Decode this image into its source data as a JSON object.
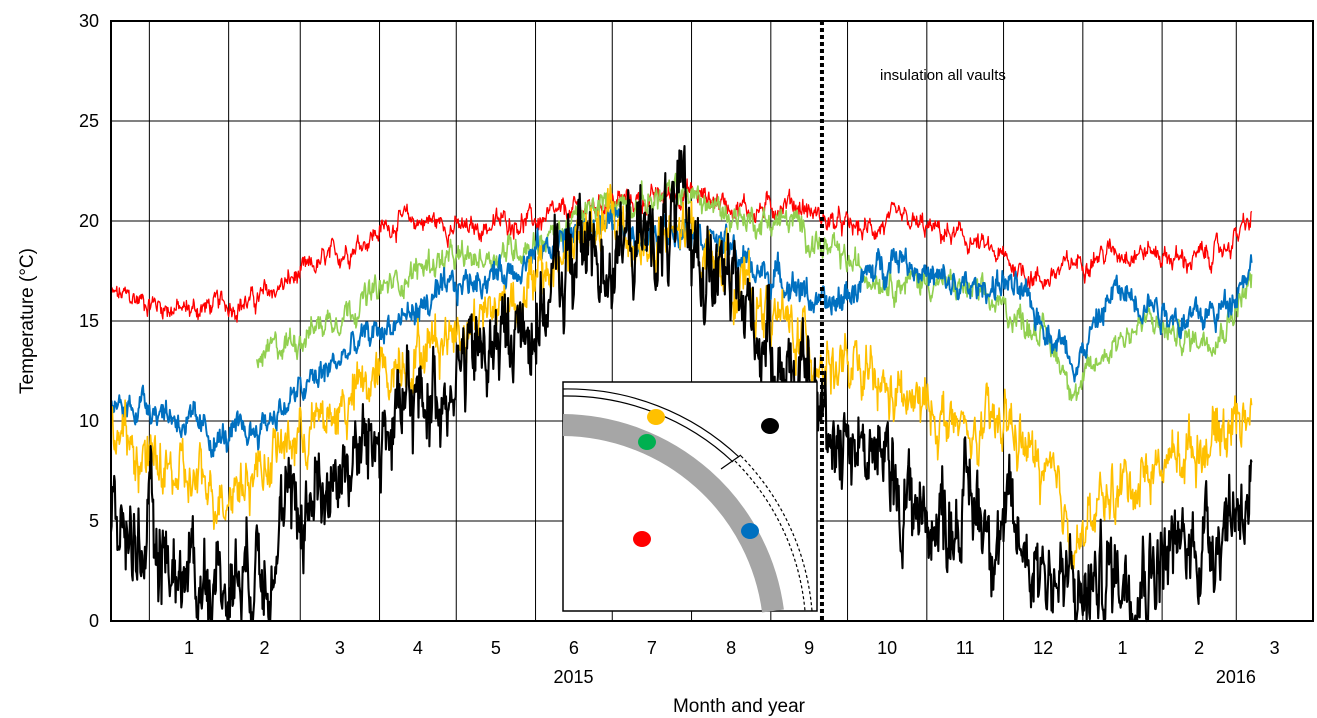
{
  "chart_data": {
    "type": "line",
    "ylabel": "Temperature (°C)",
    "xlabel": "Month and year",
    "ylim": [
      0,
      30
    ],
    "yticks": [
      0,
      5,
      10,
      15,
      20,
      25,
      30
    ],
    "xlim": [
      "2014-12-17",
      "2016-03-31"
    ],
    "month_ticks": [
      "1",
      "2",
      "3",
      "4",
      "5",
      "6",
      "7",
      "8",
      "9",
      "10",
      "11",
      "12",
      "1",
      "2",
      "3"
    ],
    "month_starts": [
      "2015-01-01",
      "2015-02-01",
      "2015-03-01",
      "2015-04-01",
      "2015-05-01",
      "2015-06-01",
      "2015-07-01",
      "2015-08-01",
      "2015-09-01",
      "2015-10-01",
      "2015-11-01",
      "2015-12-01",
      "2016-01-01",
      "2016-02-01",
      "2016-03-01"
    ],
    "year_labels": [
      {
        "text": "2015",
        "date": "2015-06-01"
      },
      {
        "text": "2016",
        "date": "2016-02-15"
      }
    ],
    "grid": true,
    "legend": "none",
    "annotation": {
      "text": "insulation all vaults",
      "date": "2015-09-21"
    },
    "series": [
      {
        "color": "#ff0000",
        "smooth": [
          [
            0,
            16.3
          ],
          [
            14,
            16.0
          ],
          [
            28,
            15.5
          ],
          [
            42,
            15.8
          ],
          [
            56,
            16.0
          ],
          [
            70,
            17.0
          ],
          [
            84,
            18.0
          ],
          [
            98,
            19.0
          ],
          [
            112,
            20.0
          ],
          [
            126,
            20.0
          ],
          [
            140,
            19.5
          ],
          [
            154,
            20.0
          ],
          [
            168,
            20.0
          ],
          [
            182,
            20.5
          ],
          [
            196,
            21.0
          ],
          [
            210,
            21.0
          ],
          [
            224,
            21.5
          ],
          [
            238,
            21.0
          ],
          [
            252,
            20.5
          ],
          [
            266,
            21.0
          ],
          [
            280,
            20.0
          ],
          [
            294,
            19.5
          ],
          [
            308,
            20.0
          ],
          [
            322,
            19.5
          ],
          [
            336,
            19.0
          ],
          [
            350,
            18.0
          ],
          [
            364,
            17.0
          ],
          [
            378,
            18.0
          ],
          [
            392,
            18.5
          ],
          [
            406,
            18.5
          ],
          [
            420,
            18.0
          ],
          [
            434,
            18.5
          ],
          [
            446,
            20.0
          ]
        ]
      },
      {
        "color": "#92d050",
        "smooth": [
          [
            57,
            13.0
          ],
          [
            70,
            14.0
          ],
          [
            84,
            15.0
          ],
          [
            98,
            16.0
          ],
          [
            112,
            17.0
          ],
          [
            126,
            18.0
          ],
          [
            140,
            18.0
          ],
          [
            154,
            18.5
          ],
          [
            168,
            19.0
          ],
          [
            182,
            20.0
          ],
          [
            196,
            21.0
          ],
          [
            210,
            21.0
          ],
          [
            224,
            21.5
          ],
          [
            238,
            20.5
          ],
          [
            252,
            20.0
          ],
          [
            266,
            20.0
          ],
          [
            280,
            18.5
          ],
          [
            294,
            17.5
          ],
          [
            308,
            17.0
          ],
          [
            322,
            17.0
          ],
          [
            336,
            16.5
          ],
          [
            350,
            15.5
          ],
          [
            364,
            14.5
          ],
          [
            378,
            11.5
          ],
          [
            392,
            14.0
          ],
          [
            406,
            15.0
          ],
          [
            420,
            14.0
          ],
          [
            434,
            14.5
          ],
          [
            446,
            17.0
          ]
        ]
      },
      {
        "color": "#0070c0",
        "smooth": [
          [
            0,
            10.5
          ],
          [
            14,
            11.0
          ],
          [
            28,
            10.0
          ],
          [
            42,
            9.0
          ],
          [
            56,
            9.5
          ],
          [
            70,
            11.0
          ],
          [
            84,
            12.5
          ],
          [
            98,
            14.0
          ],
          [
            112,
            15.0
          ],
          [
            126,
            16.0
          ],
          [
            140,
            17.0
          ],
          [
            154,
            17.5
          ],
          [
            168,
            18.5
          ],
          [
            182,
            19.5
          ],
          [
            196,
            20.0
          ],
          [
            210,
            19.0
          ],
          [
            224,
            20.0
          ],
          [
            238,
            19.0
          ],
          [
            252,
            17.5
          ],
          [
            266,
            17.0
          ],
          [
            280,
            15.5
          ],
          [
            294,
            17.0
          ],
          [
            308,
            18.5
          ],
          [
            322,
            17.0
          ],
          [
            336,
            16.5
          ],
          [
            350,
            17.0
          ],
          [
            364,
            15.0
          ],
          [
            378,
            13.0
          ],
          [
            392,
            16.5
          ],
          [
            406,
            16.0
          ],
          [
            420,
            15.0
          ],
          [
            434,
            15.5
          ],
          [
            446,
            18.0
          ]
        ]
      },
      {
        "color": "#ffc000",
        "smooth": [
          [
            0,
            9.5
          ],
          [
            14,
            8.0
          ],
          [
            28,
            7.0
          ],
          [
            42,
            6.5
          ],
          [
            56,
            7.5
          ],
          [
            70,
            9.0
          ],
          [
            84,
            10.0
          ],
          [
            98,
            11.5
          ],
          [
            112,
            13.0
          ],
          [
            126,
            14.0
          ],
          [
            140,
            15.0
          ],
          [
            154,
            16.0
          ],
          [
            168,
            17.0
          ],
          [
            182,
            19.0
          ],
          [
            196,
            20.0
          ],
          [
            210,
            18.5
          ],
          [
            224,
            19.5
          ],
          [
            238,
            18.0
          ],
          [
            252,
            16.0
          ],
          [
            266,
            14.5
          ],
          [
            280,
            13.0
          ],
          [
            294,
            12.0
          ],
          [
            308,
            11.0
          ],
          [
            322,
            10.5
          ],
          [
            336,
            9.0
          ],
          [
            350,
            10.0
          ],
          [
            364,
            7.5
          ],
          [
            378,
            4.0
          ],
          [
            392,
            6.5
          ],
          [
            406,
            7.5
          ],
          [
            420,
            8.5
          ],
          [
            434,
            9.5
          ],
          [
            446,
            11.0
          ]
        ]
      },
      {
        "color": "#000000",
        "smooth": [
          [
            0,
            4.5
          ],
          [
            14,
            4.0
          ],
          [
            28,
            2.5
          ],
          [
            42,
            2.0
          ],
          [
            56,
            3.0
          ],
          [
            70,
            5.0
          ],
          [
            84,
            7.0
          ],
          [
            98,
            8.5
          ],
          [
            112,
            10.0
          ],
          [
            126,
            11.5
          ],
          [
            140,
            13.0
          ],
          [
            154,
            14.0
          ],
          [
            168,
            15.5
          ],
          [
            182,
            18.5
          ],
          [
            196,
            18.5
          ],
          [
            210,
            19.0
          ],
          [
            224,
            20.0
          ],
          [
            238,
            17.0
          ],
          [
            252,
            15.0
          ],
          [
            266,
            12.5
          ],
          [
            280,
            10.0
          ],
          [
            294,
            9.0
          ],
          [
            308,
            6.5
          ],
          [
            322,
            5.0
          ],
          [
            336,
            6.0
          ],
          [
            350,
            4.5
          ],
          [
            364,
            3.0
          ],
          [
            378,
            1.0
          ],
          [
            392,
            2.5
          ],
          [
            406,
            3.0
          ],
          [
            420,
            3.5
          ],
          [
            434,
            5.0
          ],
          [
            446,
            7.0
          ]
        ]
      }
    ]
  }
}
